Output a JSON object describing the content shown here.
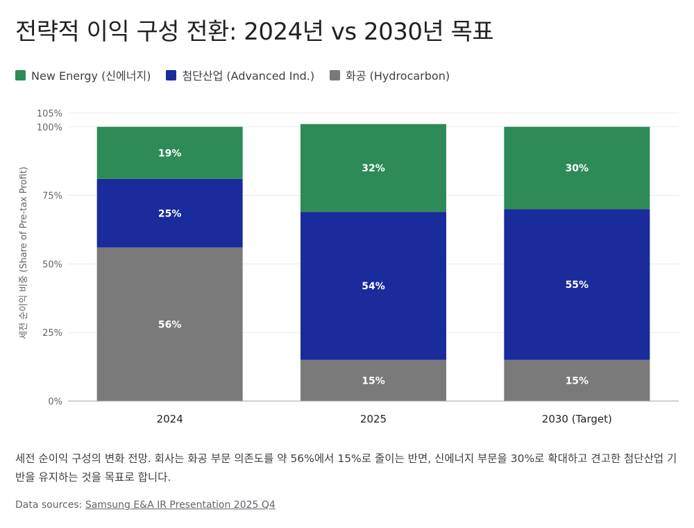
{
  "title": "전략적 이익 구성 전환: 2024년 vs 2030년 목표",
  "legend": {
    "items": [
      {
        "label": "New Energy (신에너지)",
        "color": "#2e8b57"
      },
      {
        "label": "첨단산업 (Advanced Ind.)",
        "color": "#1a2b9b"
      },
      {
        "label": "화공 (Hydrocarbon)",
        "color": "#7a7a7a"
      }
    ]
  },
  "chart_data": {
    "type": "bar",
    "stacked": true,
    "categories": [
      "2024",
      "2025",
      "2030 (Target)"
    ],
    "series": [
      {
        "name": "화공 (Hydrocarbon)",
        "color": "#7a7a7a",
        "values": [
          56,
          15,
          15
        ]
      },
      {
        "name": "첨단산업 (Advanced Ind.)",
        "color": "#1a2b9b",
        "values": [
          25,
          54,
          55
        ]
      },
      {
        "name": "New Energy (신에너지)",
        "color": "#2e8b57",
        "values": [
          19,
          32,
          30
        ]
      }
    ],
    "ylabel": "세전 순이익 비중 (Share of Pre-tax Profit)",
    "ylim": [
      0,
      105
    ],
    "yticks": [
      0,
      25,
      50,
      75,
      100,
      105
    ],
    "ytick_labels": [
      "0%",
      "25%",
      "50%",
      "75%",
      "100%",
      "105%"
    ],
    "grid": true
  },
  "caption": "세전 순이익 구성의 변화 전망. 회사는 화공 부문 의존도를 약 56%에서 15%로 줄이는 반면, 신에너지 부문을 30%로 확대하고 견고한 첨단산업 기반을 유지하는 것을 목표로 합니다.",
  "source": {
    "prefix": "Data sources: ",
    "link_text": "Samsung E&A IR Presentation 2025 Q4"
  }
}
